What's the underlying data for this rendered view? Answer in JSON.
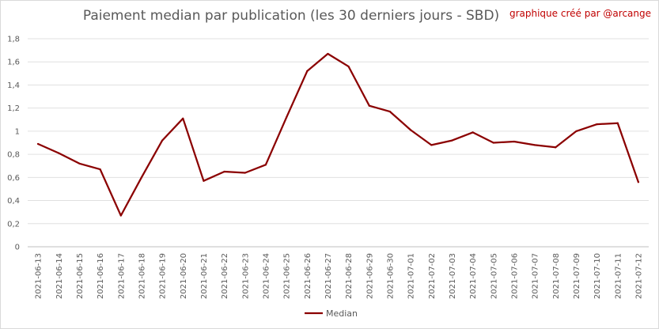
{
  "title": "Paiement median par publication (les 30 derniers jours - SBD)",
  "credit": "graphique créé par @arcange",
  "chart_data": {
    "type": "line",
    "title": "Paiement median par publication (les 30 derniers jours - SBD)",
    "xlabel": "",
    "ylabel": "",
    "ylim": [
      0,
      1.8
    ],
    "yticks": [
      "0",
      "0,2",
      "0,4",
      "0,6",
      "0,8",
      "1",
      "1,2",
      "1,4",
      "1,6",
      "1,8"
    ],
    "grid": true,
    "legend_position": "bottom",
    "categories": [
      "2021-06-13",
      "2021-06-14",
      "2021-06-15",
      "2021-06-16",
      "2021-06-17",
      "2021-06-18",
      "2021-06-19",
      "2021-06-20",
      "2021-06-21",
      "2021-06-22",
      "2021-06-23",
      "2021-06-24",
      "2021-06-25",
      "2021-06-26",
      "2021-06-27",
      "2021-06-28",
      "2021-06-29",
      "2021-06-30",
      "2021-07-01",
      "2021-07-02",
      "2021-07-03",
      "2021-07-04",
      "2021-07-05",
      "2021-07-06",
      "2021-07-07",
      "2021-07-08",
      "2021-07-09",
      "2021-07-10",
      "2021-07-11",
      "2021-07-12"
    ],
    "series": [
      {
        "name": "Median",
        "color": "#8b0000",
        "values": [
          0.89,
          0.81,
          0.72,
          0.67,
          0.27,
          0.6,
          0.92,
          1.11,
          0.57,
          0.65,
          0.64,
          0.71,
          1.12,
          1.52,
          1.67,
          1.56,
          1.22,
          1.17,
          1.01,
          0.88,
          0.92,
          0.99,
          0.9,
          0.91,
          0.88,
          0.86,
          1.0,
          1.06,
          1.07,
          0.56
        ]
      }
    ]
  }
}
